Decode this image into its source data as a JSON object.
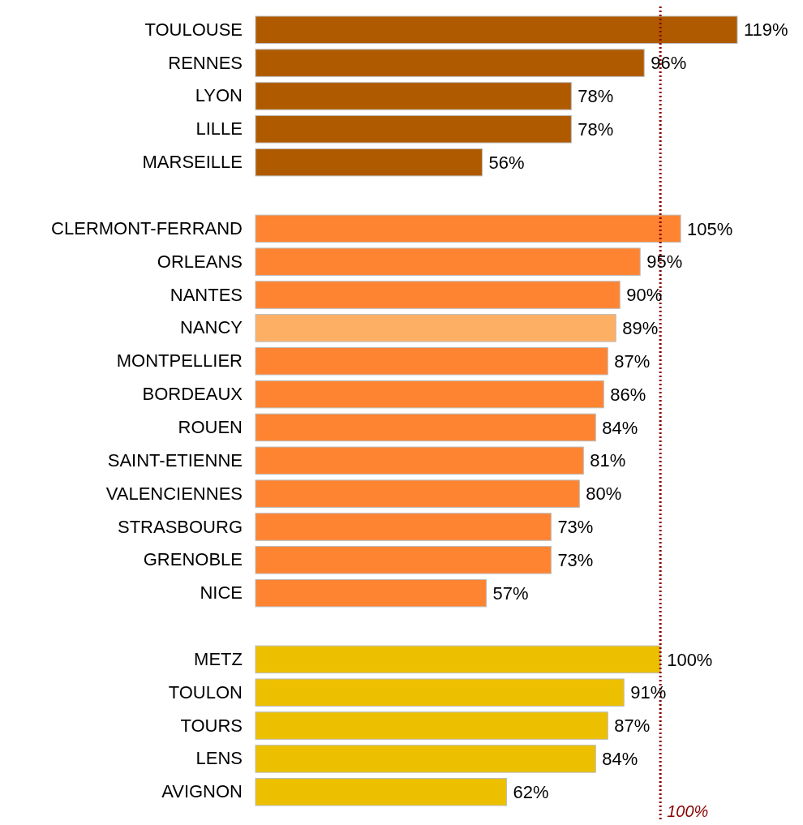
{
  "chart_data": {
    "type": "bar",
    "orientation": "horizontal",
    "categories": [
      "TOULOUSE",
      "RENNES",
      "LYON",
      "LILLE",
      "MARSEILLE",
      null,
      "CLERMONT-FERRAND",
      "ORLEANS",
      "NANTES",
      "NANCY",
      "MONTPELLIER",
      "BORDEAUX",
      "ROUEN",
      "SAINT-ETIENNE",
      "VALENCIENNES",
      "STRASBOURG",
      "GRENOBLE",
      "NICE",
      null,
      "METZ",
      "TOULON",
      "TOURS",
      "LENS",
      "AVIGNON"
    ],
    "values": [
      119,
      96,
      78,
      78,
      56,
      null,
      105,
      95,
      90,
      89,
      87,
      86,
      84,
      81,
      80,
      73,
      73,
      57,
      null,
      100,
      91,
      87,
      84,
      62
    ],
    "colors": [
      "#b05a00",
      "#b05a00",
      "#b05a00",
      "#b05a00",
      "#b05a00",
      null,
      "#ff8432",
      "#ff8432",
      "#ff8432",
      "#fdb064",
      "#ff8432",
      "#ff8432",
      "#ff8432",
      "#ff8432",
      "#ff8432",
      "#ff8432",
      "#ff8432",
      "#ff8432",
      null,
      "#ecc000",
      "#ecc000",
      "#ecc000",
      "#ecc000",
      "#ecc000"
    ],
    "value_labels": [
      "119%",
      "96%",
      "78%",
      "78%",
      "56%",
      null,
      "105%",
      "95%",
      "90%",
      "89%",
      "87%",
      "86%",
      "84%",
      "81%",
      "80%",
      "73%",
      "73%",
      "57%",
      null,
      "100%",
      "91%",
      "87%",
      "84%",
      "62%"
    ],
    "ref_lines": [
      {
        "axis": "x",
        "value": 100,
        "label": "100%",
        "color": "#8b0000"
      }
    ],
    "line_style": "dotted"
  }
}
